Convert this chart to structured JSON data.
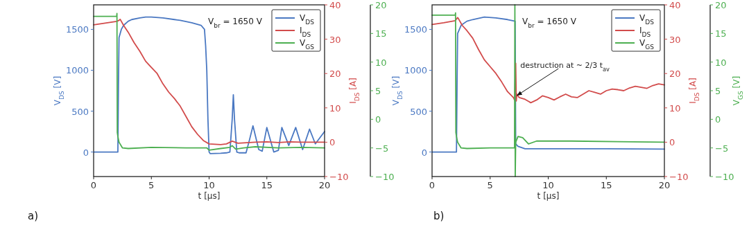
{
  "chart_data": [
    {
      "type": "line",
      "xlabel": "t [µs]",
      "ylabel": "V$_{DS}$ [V]",
      "y2label": "I$_{DS}$ [A]",
      "xlim": [
        0,
        20
      ],
      "xticks": [
        0,
        5,
        10,
        15,
        20
      ],
      "ylim": [
        -300,
        1800
      ],
      "yticks": [
        0,
        500,
        1000,
        1500
      ],
      "y2lim": [
        -10,
        40
      ],
      "y2ticks": [
        -10,
        0,
        10,
        20,
        30,
        40
      ],
      "y3lim": [
        -10,
        20
      ],
      "y3ticks": [
        -10,
        -5,
        0,
        5,
        10,
        15,
        20
      ],
      "legend": "top right",
      "grid": false,
      "line_style": "solid",
      "annotations": [
        "a)",
        "V$_{br}$ = 1650 V"
      ],
      "series": [
        {
          "name": "V$_{DS}$",
          "color": "#4a78c2",
          "x": [
            0,
            2.1,
            2.15,
            2.2,
            2.4,
            2.6,
            3,
            3.3,
            4,
            4.5,
            5,
            6,
            7,
            7.5,
            8.5,
            9.3,
            9.6,
            9.7,
            9.8,
            9.9,
            10,
            10.1,
            11,
            11.5,
            11.8,
            12,
            12.1,
            12.2,
            12.4,
            12.6,
            13.2,
            13.5,
            13.8,
            14.3,
            14.6,
            15,
            15.4,
            15.6,
            16,
            16.3,
            16.9,
            17.5,
            18.1,
            18.7,
            19.2,
            20
          ],
          "values": [
            0,
            0,
            800,
            1400,
            1500,
            1550,
            1600,
            1620,
            1640,
            1650,
            1650,
            1640,
            1620,
            1610,
            1580,
            1550,
            1500,
            1300,
            1000,
            400,
            0,
            -20,
            -15,
            -10,
            0,
            400,
            700,
            400,
            0,
            -10,
            -10,
            150,
            320,
            30,
            10,
            300,
            100,
            0,
            20,
            300,
            80,
            300,
            30,
            280,
            100,
            250
          ]
        },
        {
          "name": "I$_{DS}$",
          "color": "#d24b4b",
          "axis": "y2",
          "x": [
            0,
            1,
            2,
            2.2,
            2.3,
            2.6,
            3,
            3.5,
            4,
            4.5,
            5,
            5.5,
            6,
            6.5,
            7,
            7.5,
            8,
            8.5,
            9,
            9.5,
            10,
            10.5,
            11,
            11.5,
            12,
            12.5,
            13,
            14,
            15,
            16,
            17,
            18,
            19,
            20
          ],
          "values": [
            34.2,
            34.7,
            35.2,
            35.5,
            35.8,
            34,
            32,
            29,
            26.5,
            23.6,
            21.8,
            20,
            17,
            14.6,
            12.7,
            10.5,
            7.5,
            4.5,
            2.3,
            0.5,
            -0.5,
            -0.6,
            -0.7,
            -0.5,
            0.3,
            -0.3,
            -0.2,
            0,
            0.1,
            -0.1,
            0.1,
            0,
            0,
            0
          ]
        },
        {
          "name": "V$_{GS}$",
          "color": "#4caf50",
          "axis": "y3",
          "x": [
            0,
            2,
            2.02,
            2.05,
            2.1,
            2.2,
            2.5,
            3,
            5,
            8,
            9.8,
            10,
            11,
            11.8,
            12,
            12.3,
            13,
            14,
            16,
            18,
            20
          ],
          "values": [
            18,
            18,
            18.5,
            -2.3,
            -3,
            -4,
            -5,
            -5.1,
            -4.9,
            -5,
            -5,
            -5.4,
            -5.1,
            -4.9,
            -4.6,
            -5.2,
            -5,
            -4.8,
            -5,
            -4.9,
            -5
          ]
        }
      ]
    },
    {
      "type": "line",
      "xlabel": "t [µs]",
      "ylabel": "V$_{DS}$ [V]",
      "y2label": "I$_{DS}$ [A]",
      "y3label": "V$_{GS}$ [V]",
      "xlim": [
        0,
        20
      ],
      "xticks": [
        0,
        5,
        10,
        15,
        20
      ],
      "ylim": [
        -300,
        1800
      ],
      "yticks": [
        0,
        500,
        1000,
        1500
      ],
      "y2lim": [
        -10,
        40
      ],
      "y2ticks": [
        -10,
        0,
        10,
        20,
        30,
        40
      ],
      "y3lim": [
        -10,
        20
      ],
      "y3ticks": [
        -10,
        -5,
        0,
        5,
        10,
        15,
        20
      ],
      "legend": "top right",
      "grid": false,
      "line_style": "solid",
      "annotations": [
        "b)",
        "V$_{br}$ = 1650 V",
        {
          "text": "destruction at ~ 2/3 t$_{av}$",
          "x": 7.3,
          "y": 690
        }
      ],
      "series": [
        {
          "name": "V$_{DS}$",
          "color": "#4a78c2",
          "x": [
            0,
            2.1,
            2.15,
            2.2,
            2.5,
            3,
            3.5,
            4.5,
            5.5,
            6.5,
            7.15,
            7.2,
            7.4,
            8,
            10,
            15,
            20
          ],
          "values": [
            0,
            0,
            800,
            1450,
            1550,
            1600,
            1620,
            1650,
            1640,
            1620,
            1600,
            100,
            70,
            40,
            40,
            40,
            35
          ]
        },
        {
          "name": "I$_{DS}$",
          "color": "#d24b4b",
          "axis": "y2",
          "x": [
            0,
            1,
            2,
            2.2,
            2.3,
            2.6,
            3,
            3.5,
            4,
            4.5,
            5,
            5.5,
            6,
            6.5,
            7,
            7.1,
            7.2,
            7.25,
            7.3,
            7.5,
            8,
            8.5,
            9,
            9.5,
            10,
            10.5,
            11,
            11.5,
            12,
            12.5,
            13,
            13.5,
            14,
            14.5,
            15,
            15.5,
            16,
            16.5,
            17,
            17.5,
            18,
            18.5,
            19,
            19.5,
            20
          ],
          "values": [
            34.3,
            34.8,
            35.4,
            36.3,
            35.8,
            34,
            32.5,
            30.3,
            27,
            24,
            22,
            20,
            17.5,
            14.7,
            13,
            12.3,
            23,
            12,
            14,
            13,
            12.5,
            11.5,
            12.3,
            13.5,
            13,
            12.3,
            13.2,
            14,
            13.2,
            13,
            14,
            15,
            14.5,
            14,
            15,
            15.5,
            15.3,
            15,
            15.8,
            16.3,
            16,
            15.7,
            16.5,
            17,
            16.7
          ]
        },
        {
          "name": "V$_{GS}$",
          "color": "#4caf50",
          "axis": "y3",
          "x": [
            0,
            2,
            2.02,
            2.05,
            2.1,
            2.2,
            2.5,
            3,
            5,
            7.1,
            7.13,
            7.16,
            7.2,
            7.4,
            7.8,
            8.3,
            9,
            12,
            16,
            20
          ],
          "values": [
            18.2,
            18.2,
            18.6,
            -2.3,
            -3,
            -4,
            -5,
            -5.1,
            -5,
            -5,
            20,
            -10,
            -4,
            -3,
            -3.2,
            -4.3,
            -3.8,
            -3.8,
            -3.9,
            -4
          ]
        }
      ]
    }
  ]
}
